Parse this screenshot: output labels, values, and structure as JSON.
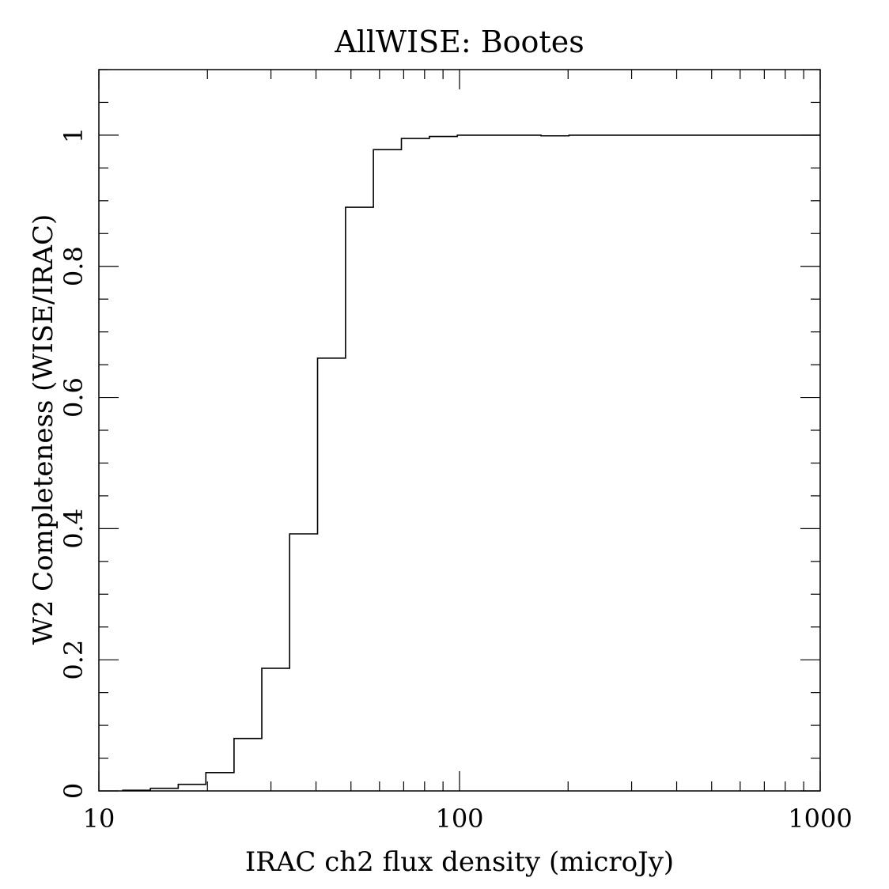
{
  "chart_data": {
    "type": "line",
    "style": "step-histogram",
    "title": "AllWISE: Bootes",
    "xlabel": "IRAC ch2 flux density (microJy)",
    "ylabel": "W2 Completeness (WISE/IRAC)",
    "xscale": "log",
    "xlim": [
      10,
      1000
    ],
    "ylim": [
      0,
      1.1
    ],
    "xticks": [
      10,
      100,
      1000
    ],
    "xtick_labels": [
      "10",
      "100",
      "1000"
    ],
    "yticks": [
      0,
      0.2,
      0.4,
      0.6,
      0.8,
      1
    ],
    "ytick_labels": [
      "0",
      "0.2",
      "0.4",
      "0.6",
      "0.8",
      "1"
    ],
    "grid": false,
    "line_color": "#000000",
    "bin_edges": [
      11.6,
      13.9,
      16.6,
      19.8,
      23.7,
      28.3,
      33.8,
      40.4,
      48.3,
      57.7,
      69.0,
      82.5,
      98.6,
      117.8,
      140.8,
      168.3,
      201.2,
      240.5,
      287.4,
      343.5,
      410.6,
      490.8,
      586.6,
      701.2,
      838.1,
      1000
    ],
    "values": [
      0.001,
      0.004,
      0.01,
      0.028,
      0.08,
      0.187,
      0.392,
      0.66,
      0.89,
      0.978,
      0.995,
      0.998,
      1.0,
      1.0,
      1.0,
      0.999,
      1.0,
      1.0,
      1.0,
      1.0,
      1.0,
      1.0,
      1.0,
      1.0,
      1.0
    ]
  }
}
